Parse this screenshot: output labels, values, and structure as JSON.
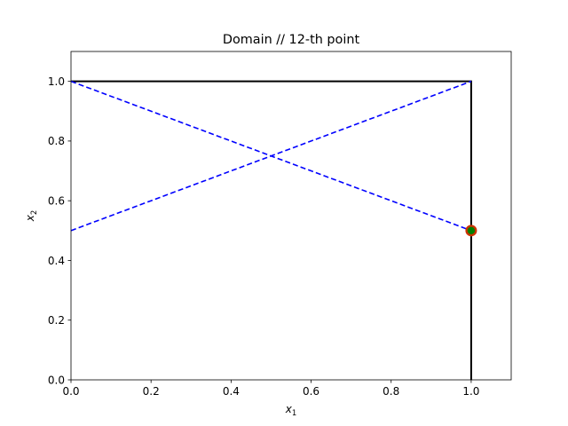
{
  "chart_data": {
    "type": "line",
    "title": "Domain // 12-th point",
    "xlabel_base": "x",
    "xlabel_sub": "1",
    "ylabel_base": "x",
    "ylabel_sub": "2",
    "xlim": [
      0,
      1.1
    ],
    "ylim": [
      0,
      1.1
    ],
    "xticks": [
      0.0,
      0.2,
      0.4,
      0.6,
      0.8,
      1.0
    ],
    "xtick_labels": [
      "0.0",
      "0.2",
      "0.4",
      "0.6",
      "0.8",
      "1.0"
    ],
    "yticks": [
      0.0,
      0.2,
      0.4,
      0.6,
      0.8,
      1.0
    ],
    "ytick_labels": [
      "0.0",
      "0.2",
      "0.4",
      "0.6",
      "0.8",
      "1.0"
    ],
    "grid": false,
    "series": [
      {
        "style": "solid",
        "color": "#000000",
        "x": [
          0,
          1,
          1
        ],
        "y": [
          1,
          1,
          0
        ]
      },
      {
        "style": "dashed",
        "color": "#0000ff",
        "x": [
          0,
          1
        ],
        "y": [
          1,
          0.5
        ]
      },
      {
        "style": "dashed",
        "color": "#0000ff",
        "x": [
          0,
          1
        ],
        "y": [
          0.5,
          1
        ]
      }
    ],
    "markers": [
      {
        "x": 1.0,
        "y": 0.5,
        "color": "#cc3300"
      },
      {
        "x": 1.0,
        "y": 0.5,
        "color": "#008000"
      }
    ]
  }
}
